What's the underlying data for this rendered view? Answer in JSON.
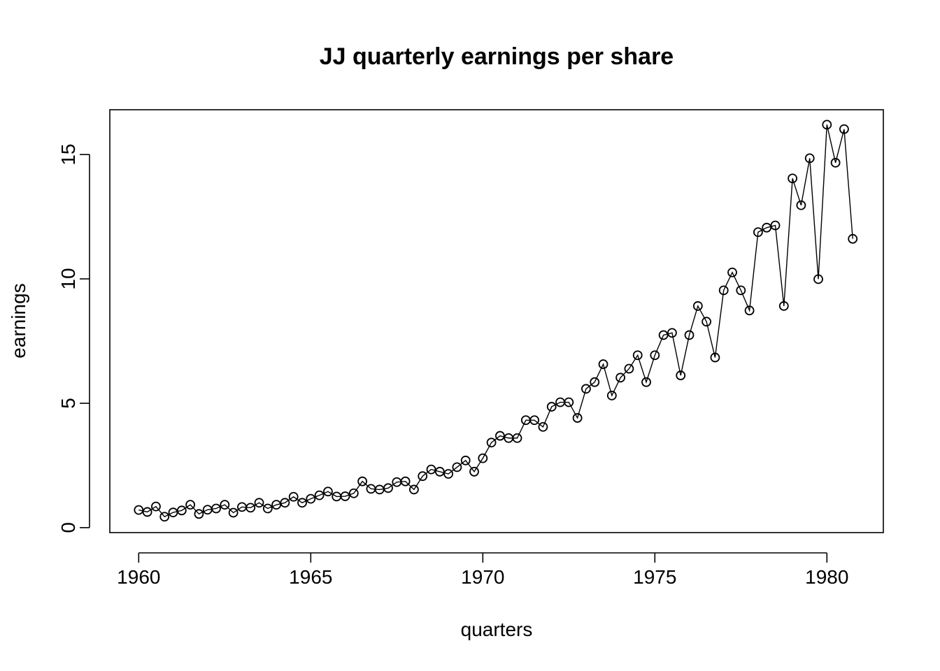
{
  "chart_data": {
    "type": "line",
    "title": "JJ quarterly earnings per share",
    "xlabel": "quarters",
    "ylabel": "earnings",
    "xlim": [
      1959.16,
      1981.64
    ],
    "ylim": [
      -0.2,
      16.8
    ],
    "xticks": [
      1960,
      1965,
      1970,
      1975,
      1980
    ],
    "xtick_labels": [
      "1960",
      "1965",
      "1970",
      "1975",
      "1980"
    ],
    "yticks": [
      0,
      5,
      10,
      15
    ],
    "ytick_labels": [
      "0",
      "5",
      "10",
      "15"
    ],
    "grid": false,
    "markers": "open-circle",
    "series": [
      {
        "x_start": 1960.0,
        "x_step": 0.25,
        "values": [
          0.71,
          0.63,
          0.85,
          0.44,
          0.61,
          0.69,
          0.92,
          0.55,
          0.72,
          0.77,
          0.92,
          0.6,
          0.83,
          0.8,
          1.0,
          0.77,
          0.92,
          1.0,
          1.24,
          1.0,
          1.16,
          1.3,
          1.45,
          1.25,
          1.26,
          1.38,
          1.86,
          1.56,
          1.53,
          1.59,
          1.83,
          1.86,
          1.53,
          2.07,
          2.34,
          2.25,
          2.16,
          2.43,
          2.7,
          2.25,
          2.79,
          3.42,
          3.69,
          3.6,
          3.6,
          4.32,
          4.32,
          4.05,
          4.86,
          5.04,
          5.04,
          4.41,
          5.58,
          5.85,
          6.57,
          5.31,
          6.03,
          6.39,
          6.93,
          5.85,
          6.93,
          7.74,
          7.83,
          6.12,
          7.74,
          8.91,
          8.28,
          6.84,
          9.54,
          10.26,
          9.54,
          8.73,
          11.88,
          12.06,
          12.15,
          8.91,
          14.04,
          12.96,
          14.85,
          9.99,
          16.2,
          14.67,
          16.02,
          11.61
        ]
      }
    ]
  }
}
